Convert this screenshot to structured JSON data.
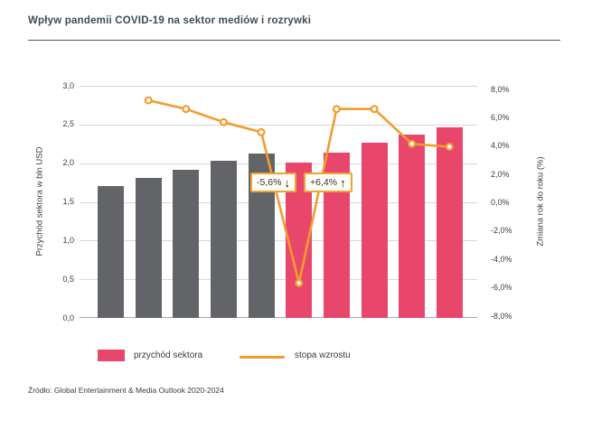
{
  "title": "Wpływ pandemii COVID-19 na sektor mediów i rozrywki",
  "source": "Źródło: Global Entertainment & Media Outlook 2020-2024",
  "colors": {
    "bar_gray": "#626468",
    "bar_pink": "#E8476B",
    "line_orange": "#F29C2F",
    "title_text": "#3E4A54",
    "axis_text": "#3C3C3C",
    "annotation_border": "#F0A232"
  },
  "legend": {
    "items": [
      {
        "label": "przychód sektora",
        "swatch": "bar"
      },
      {
        "label": "stopa wzrostu",
        "swatch": "line"
      }
    ]
  },
  "chart_data": {
    "type": "combo-bar-line",
    "title": "Wpływ pandemii COVID-19 na sektor mediów i rozrywki",
    "x_tick_labels_visible": false,
    "grid": true,
    "left_axis": {
      "title": "Przychód sektora w bln USD",
      "range": [
        0,
        3
      ],
      "tick_labels": [
        "3,0",
        "2,5",
        "2,0",
        "1,5",
        "1,0",
        "0,5",
        "0,0"
      ]
    },
    "right_axis": {
      "title": "Zmiana rok do roku (%)",
      "range": [
        -8,
        8
      ],
      "tick_labels": [
        "8,0%",
        "6,0%",
        "4,0%",
        "2,0%",
        "0,0%",
        "-2,0%",
        "-4,0%",
        "-6,0%",
        "-8,0%"
      ]
    },
    "series": [
      {
        "name": "przychód sektora",
        "type": "bar",
        "axis": "left",
        "values": [
          1.7,
          1.81,
          1.92,
          2.03,
          2.13,
          2.01,
          2.14,
          2.27,
          2.37,
          2.46
        ],
        "segment_colors": [
          "gray",
          "gray",
          "gray",
          "gray",
          "gray",
          "pink",
          "pink",
          "pink",
          "pink",
          "pink"
        ]
      },
      {
        "name": "stopa wzrostu",
        "type": "line",
        "axis": "right",
        "values": [
          null,
          7.0,
          6.4,
          5.5,
          4.8,
          -5.6,
          6.4,
          6.4,
          4.0,
          3.8
        ]
      }
    ],
    "annotations": [
      {
        "text": "-5,6%",
        "arrow_glyph": "↓",
        "direction": "down"
      },
      {
        "text": "+6,4%",
        "arrow_glyph": "↑",
        "direction": "up"
      }
    ],
    "legend_position": "bottom"
  }
}
